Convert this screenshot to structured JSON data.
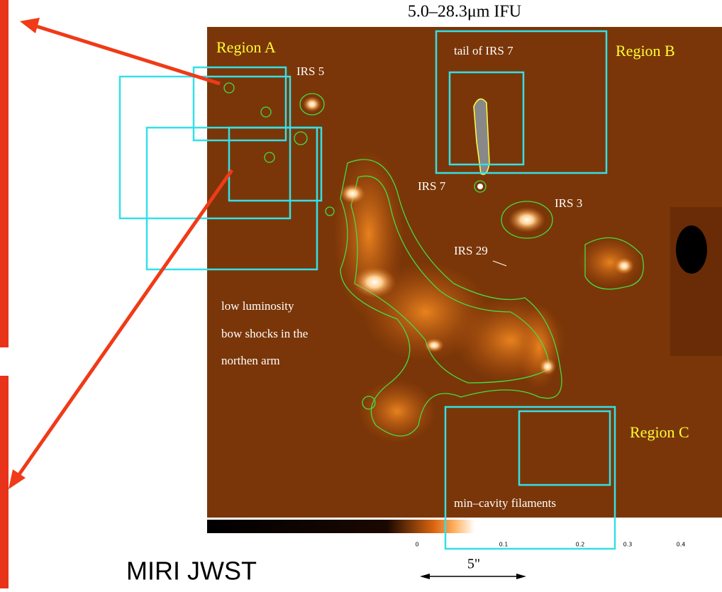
{
  "title": "5.0–28.3μm IFU",
  "labels": {
    "region_a": "Region A",
    "region_b": "Region B",
    "region_c": "Region C",
    "irs5": "IRS 5",
    "irs7": "IRS 7",
    "irs3": "IRS 3",
    "irs29": "IRS 29",
    "tail": "tail of IRS 7",
    "bow_shocks": [
      "low luminosity",
      "bow shocks in the",
      "northen arm"
    ],
    "filaments": "min–cavity filaments"
  },
  "colorbar": {
    "tick_labels": [
      "0",
      "0.1",
      "0.2",
      "0.3",
      "0.4"
    ]
  },
  "scale_bar": "5\"",
  "caption": "MIRI JWST"
}
